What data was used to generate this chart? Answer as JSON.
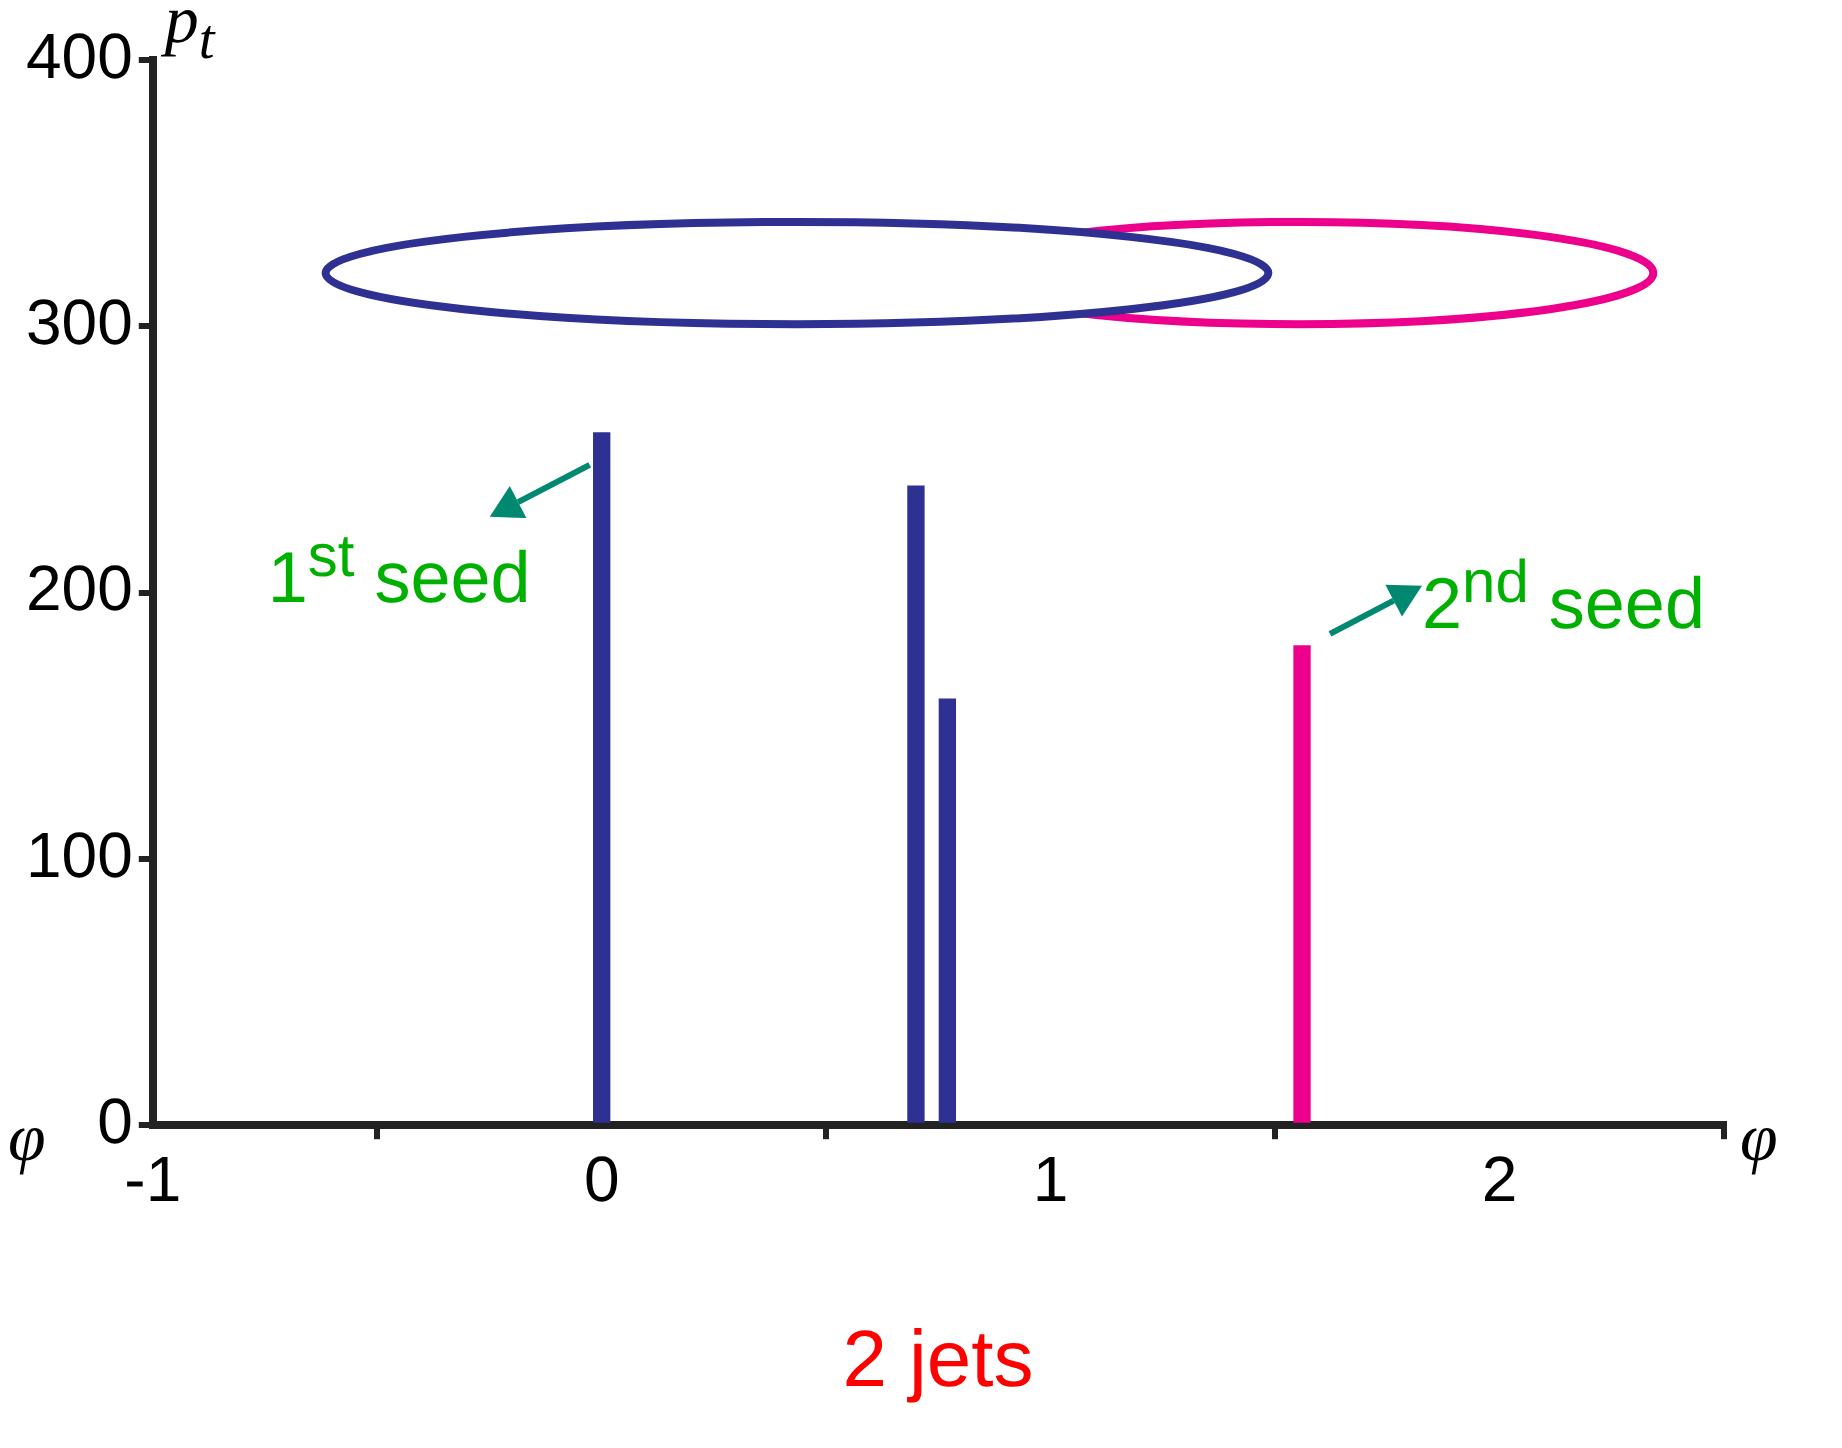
{
  "chart_data": {
    "type": "bar",
    "title": "2 jets",
    "xlabel": "φ",
    "ylabel": "p$_{t}$",
    "x": [
      0,
      0.7,
      0.77,
      1.56
    ],
    "values": [
      260,
      240,
      160,
      180
    ],
    "colors": [
      "#2e3192",
      "#2e3192",
      "#2e3192",
      "#ec008c"
    ],
    "xlim": [
      -1,
      2.5
    ],
    "xticks": [
      -1,
      0,
      1,
      2
    ],
    "ylim": [
      0,
      400
    ],
    "yticks": [
      0,
      100,
      200,
      300,
      400
    ],
    "grid": false,
    "legend": false,
    "annotations": [
      {
        "text": "1$^{st}$ seed",
        "x": 0,
        "y": 260
      },
      {
        "text": "2$^{nd}$ seed",
        "x": 1.56,
        "y": 180
      },
      "φ"
    ]
  }
}
